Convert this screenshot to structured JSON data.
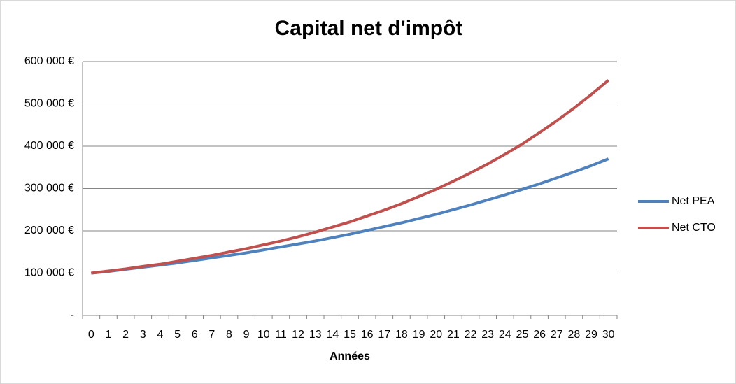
{
  "chart_data": {
    "type": "line",
    "title": "Capital net d'impôt",
    "x_label": "Années",
    "x": [
      0,
      1,
      2,
      3,
      4,
      5,
      6,
      7,
      8,
      9,
      10,
      11,
      12,
      13,
      14,
      15,
      16,
      17,
      18,
      19,
      20,
      21,
      22,
      23,
      24,
      25,
      26,
      27,
      28,
      29,
      30
    ],
    "series": [
      {
        "name": "Net PEA",
        "color": "#4f81bd",
        "values": [
          100000,
          104000,
          109000,
          114000,
          119000,
          124000,
          130000,
          136000,
          142000,
          148000,
          155000,
          162000,
          169000,
          176000,
          184000,
          192000,
          201000,
          210000,
          219000,
          229000,
          239000,
          250000,
          261000,
          273000,
          285000,
          298000,
          311000,
          325000,
          339000,
          354000,
          370000
        ]
      },
      {
        "name": "Net CTO",
        "color": "#c0504d",
        "values": [
          100000,
          105000,
          110000,
          116000,
          121000,
          128000,
          135000,
          142000,
          150000,
          158000,
          167000,
          176000,
          186000,
          197000,
          209000,
          221000,
          235000,
          249000,
          264000,
          281000,
          298000,
          317000,
          337000,
          358000,
          381000,
          405000,
          432000,
          460000,
          490000,
          522000,
          556000
        ]
      }
    ],
    "ylim": [
      0,
      600000
    ],
    "yticks": [
      {
        "value": 0,
        "label": "-"
      },
      {
        "value": 100000,
        "label": "100 000 €"
      },
      {
        "value": 200000,
        "label": "200 000 €"
      },
      {
        "value": 300000,
        "label": "300 000 €"
      },
      {
        "value": 400000,
        "label": "400 000 €"
      },
      {
        "value": 500000,
        "label": "500 000 €"
      },
      {
        "value": 600000,
        "label": "600 000 €"
      }
    ],
    "grid": true,
    "legend": "right"
  }
}
